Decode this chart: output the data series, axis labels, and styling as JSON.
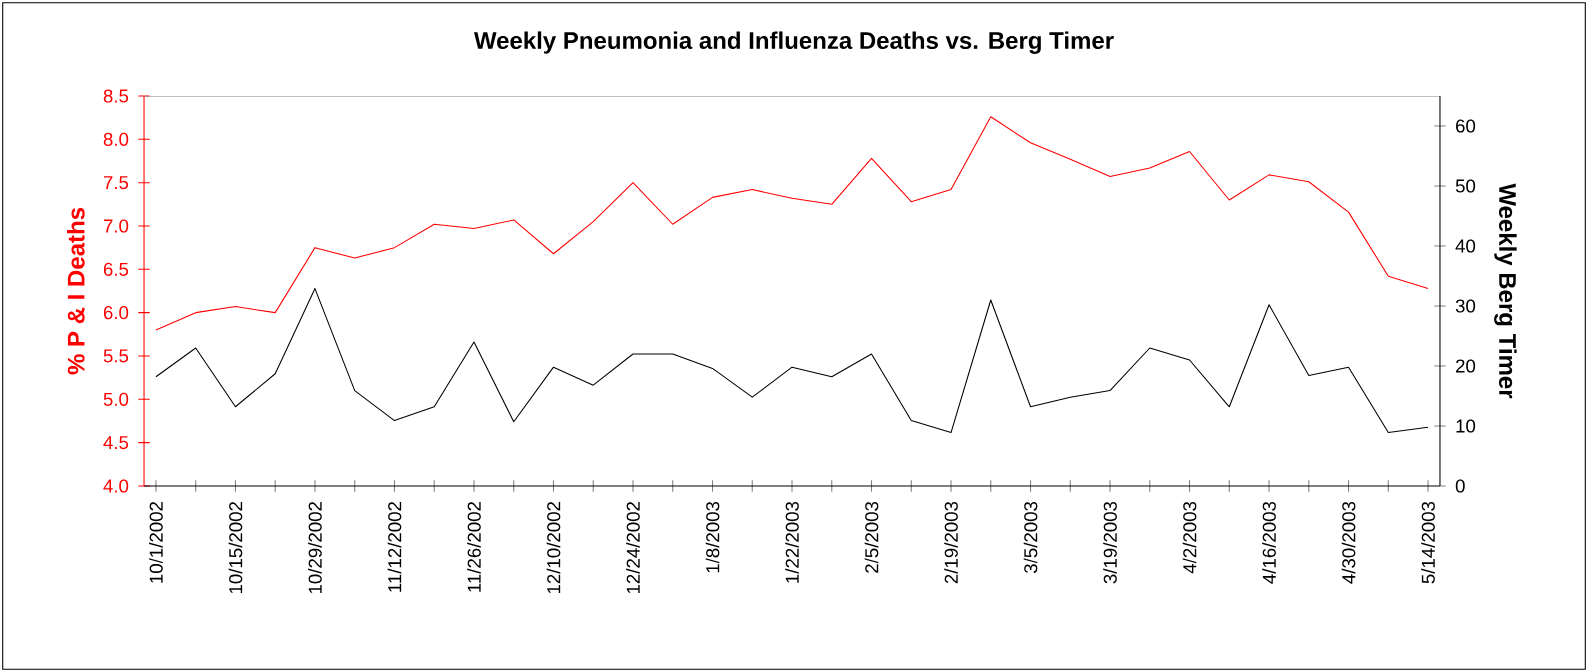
{
  "chart_data": {
    "type": "line",
    "title": "Weekly Pneumonia and Influenza Deaths vs. Berg Timer",
    "ylabel": "% P & I Deaths",
    "y2label": "Weekly Berg Timer",
    "categories": [
      "10/1/2002",
      null,
      "10/15/2002",
      null,
      "10/29/2002",
      null,
      "11/12/2002",
      null,
      "11/26/2002",
      null,
      "12/10/2002",
      null,
      "12/24/2002",
      null,
      "1/8/2003",
      null,
      "1/22/2003",
      null,
      "2/5/2003",
      null,
      "2/19/2003",
      null,
      "3/5/2003",
      null,
      "3/19/2003",
      null,
      "4/2/2003",
      null,
      "4/16/2003",
      null,
      "4/30/2003",
      null,
      "5/14/2003"
    ],
    "series": [
      {
        "color": "#ff0000",
        "values": [
          5.8,
          6.0,
          6.07,
          6.0,
          6.75,
          6.63,
          6.75,
          7.02,
          6.97,
          7.07,
          6.68,
          7.05,
          7.5,
          7.02,
          7.33,
          7.42,
          7.32,
          7.25,
          7.78,
          7.28,
          7.42,
          8.26,
          7.96,
          7.77,
          7.57,
          7.67,
          7.86,
          7.3,
          7.59,
          7.51,
          7.16,
          6.42,
          6.28
        ]
      },
      {
        "color": "#000000",
        "axis": "y2",
        "values": [
          18.2,
          23,
          13.2,
          18.7,
          32.9,
          15.9,
          10.9,
          13.2,
          24,
          10.7,
          19.8,
          16.8,
          22,
          22,
          19.6,
          14.8,
          19.8,
          18.2,
          22,
          10.9,
          8.9,
          31,
          13.2,
          14.8,
          15.9,
          23,
          21,
          13.2,
          30.2,
          18.4,
          19.8,
          8.9,
          9.8
        ]
      }
    ],
    "ylim": [
      4,
      8.5
    ],
    "yticks": [
      {
        "value": 4,
        "label": "4.0"
      },
      {
        "value": 4.5,
        "label": "4.5"
      },
      {
        "value": 5,
        "label": "5.0"
      },
      {
        "value": 5.5,
        "label": "5.5"
      },
      {
        "value": 6,
        "label": "6.0"
      },
      {
        "value": 6.5,
        "label": "6.5"
      },
      {
        "value": 7,
        "label": "7.0"
      },
      {
        "value": 7.5,
        "label": "7.5"
      },
      {
        "value": 8,
        "label": "8.0"
      },
      {
        "value": 8.5,
        "label": "8.5"
      }
    ],
    "y2lim": [
      0,
      65
    ],
    "y2ticks": [
      0,
      10,
      20,
      30,
      40,
      50,
      60
    ],
    "grid": false,
    "marker": "none",
    "line_style": "solid"
  }
}
